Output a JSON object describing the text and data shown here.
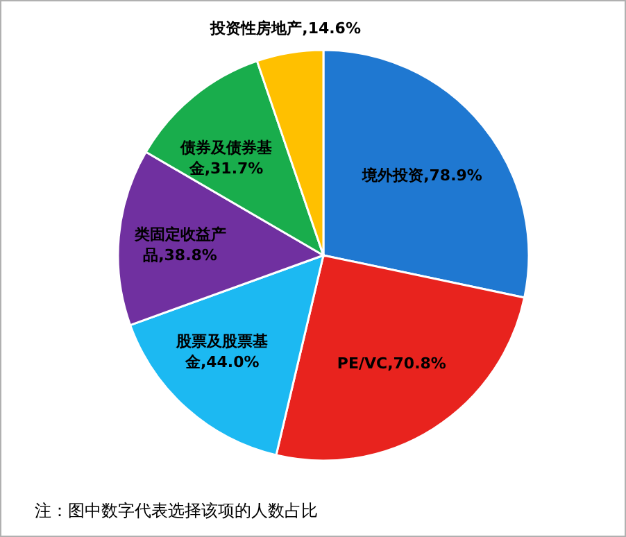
{
  "chart_data": {
    "type": "pie",
    "categories": [
      "境外投资",
      "PE/VC",
      "股票及股票基金",
      "类固定收益产品",
      "债券及债券基金",
      "投资性房地产"
    ],
    "values": [
      78.9,
      70.8,
      44.0,
      38.8,
      31.7,
      14.6
    ],
    "colors": [
      "#1f78d1",
      "#e8231e",
      "#1cb9f2",
      "#7030a0",
      "#19ad4c",
      "#ffc000"
    ],
    "value_labels": [
      "78.9%",
      "70.8%",
      "44.0%",
      "38.8%",
      "31.7%",
      "14.6%"
    ],
    "annotations": [
      "注：图中数字代表选择该项的人数占比"
    ]
  }
}
